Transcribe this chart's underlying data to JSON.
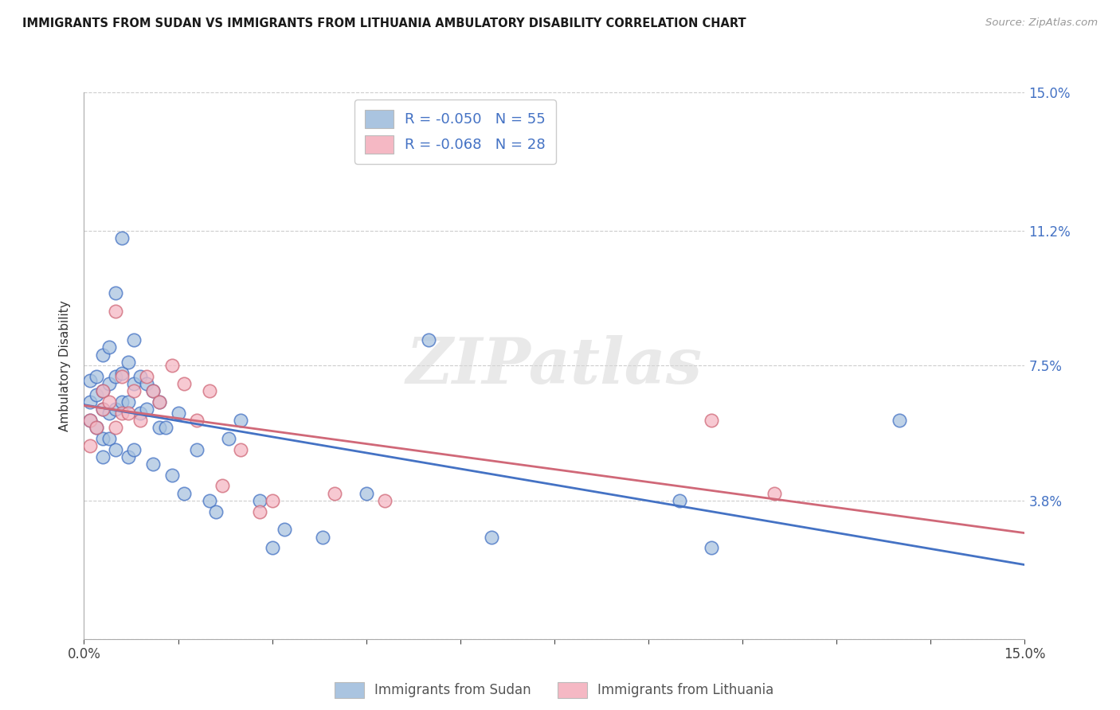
{
  "title": "IMMIGRANTS FROM SUDAN VS IMMIGRANTS FROM LITHUANIA AMBULATORY DISABILITY CORRELATION CHART",
  "source": "Source: ZipAtlas.com",
  "ylabel": "Ambulatory Disability",
  "xlim": [
    0.0,
    0.15
  ],
  "ylim": [
    0.0,
    0.15
  ],
  "ytick_vals": [
    0.0,
    0.038,
    0.075,
    0.112,
    0.15
  ],
  "ytick_labels": [
    "",
    "3.8%",
    "7.5%",
    "11.2%",
    "15.0%"
  ],
  "xtick_vals": [
    0.0,
    0.015,
    0.03,
    0.045,
    0.06,
    0.075,
    0.09,
    0.105,
    0.12,
    0.135,
    0.15
  ],
  "sudan_color": "#aac4e0",
  "sudan_edge_color": "#4472c4",
  "sudan_line_color": "#4472c4",
  "lithuania_color": "#f5b8c4",
  "lithuania_edge_color": "#d06878",
  "lithuania_line_color": "#d06878",
  "legend_r_sudan": "R = -0.050",
  "legend_n_sudan": "N = 55",
  "legend_r_lithuania": "R = -0.068",
  "legend_n_lithuania": "N = 28",
  "watermark": "ZIPatlas",
  "sudan_x": [
    0.001,
    0.001,
    0.001,
    0.002,
    0.002,
    0.002,
    0.003,
    0.003,
    0.003,
    0.003,
    0.003,
    0.004,
    0.004,
    0.004,
    0.004,
    0.005,
    0.005,
    0.005,
    0.005,
    0.006,
    0.006,
    0.006,
    0.007,
    0.007,
    0.007,
    0.008,
    0.008,
    0.008,
    0.009,
    0.009,
    0.01,
    0.01,
    0.011,
    0.011,
    0.012,
    0.012,
    0.013,
    0.014,
    0.015,
    0.016,
    0.018,
    0.02,
    0.021,
    0.023,
    0.025,
    0.028,
    0.03,
    0.032,
    0.038,
    0.045,
    0.055,
    0.065,
    0.095,
    0.1,
    0.13
  ],
  "sudan_y": [
    0.065,
    0.071,
    0.06,
    0.072,
    0.067,
    0.058,
    0.078,
    0.068,
    0.063,
    0.055,
    0.05,
    0.08,
    0.07,
    0.062,
    0.055,
    0.072,
    0.095,
    0.063,
    0.052,
    0.11,
    0.073,
    0.065,
    0.076,
    0.065,
    0.05,
    0.082,
    0.07,
    0.052,
    0.072,
    0.062,
    0.07,
    0.063,
    0.048,
    0.068,
    0.058,
    0.065,
    0.058,
    0.045,
    0.062,
    0.04,
    0.052,
    0.038,
    0.035,
    0.055,
    0.06,
    0.038,
    0.025,
    0.03,
    0.028,
    0.04,
    0.082,
    0.028,
    0.038,
    0.025,
    0.06
  ],
  "lithuania_x": [
    0.001,
    0.001,
    0.002,
    0.003,
    0.003,
    0.004,
    0.005,
    0.005,
    0.006,
    0.006,
    0.007,
    0.008,
    0.009,
    0.01,
    0.011,
    0.012,
    0.014,
    0.016,
    0.018,
    0.02,
    0.022,
    0.025,
    0.028,
    0.03,
    0.04,
    0.048,
    0.1,
    0.11
  ],
  "lithuania_y": [
    0.06,
    0.053,
    0.058,
    0.068,
    0.063,
    0.065,
    0.09,
    0.058,
    0.072,
    0.062,
    0.062,
    0.068,
    0.06,
    0.072,
    0.068,
    0.065,
    0.075,
    0.07,
    0.06,
    0.068,
    0.042,
    0.052,
    0.035,
    0.038,
    0.04,
    0.038,
    0.06,
    0.04
  ]
}
